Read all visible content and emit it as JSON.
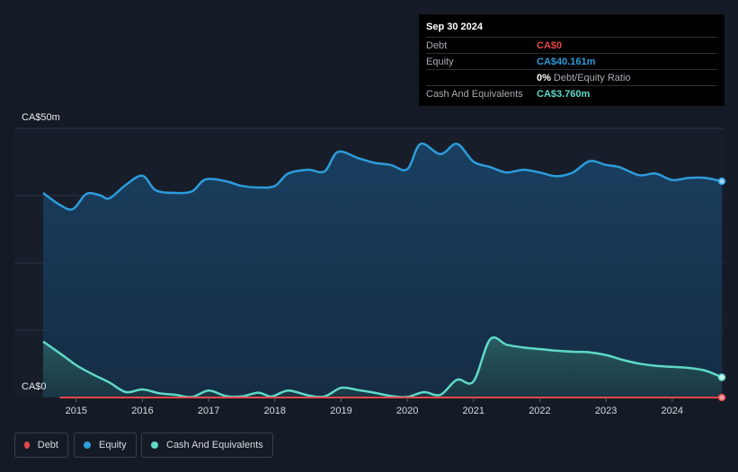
{
  "tooltip": {
    "date": "Sep 30 2024",
    "rows": [
      {
        "label": "Debt",
        "value": "CA$0",
        "color": "#e64848"
      },
      {
        "label": "Equity",
        "value": "CA$40.161m",
        "color": "#2d9cdb"
      },
      {
        "label": "",
        "value": "0%",
        "suffix": "Debt/Equity Ratio",
        "color": "#ffffff"
      },
      {
        "label": "Cash And Equivalents",
        "value": "CA$3.760m",
        "color": "#5fd9c8"
      }
    ]
  },
  "legend": [
    {
      "label": "Debt",
      "color": "#e64848"
    },
    {
      "label": "Equity",
      "color": "#2d9cdb"
    },
    {
      "label": "Cash And Equivalents",
      "color": "#5fd9c8"
    }
  ],
  "chart_data": {
    "type": "area",
    "title": "",
    "xlabel": "",
    "ylabel": "",
    "y_unit": "CA$ millions",
    "ylim": [
      0,
      50
    ],
    "xlim": [
      2014.5,
      2024.75
    ],
    "y_tick_labels": [
      "CA$50m",
      "CA$0"
    ],
    "x_ticks": [
      2015,
      2016,
      2017,
      2018,
      2019,
      2020,
      2021,
      2022,
      2023,
      2024
    ],
    "series": [
      {
        "name": "Equity",
        "color": "#2d9cdb",
        "points": [
          [
            2014.5,
            38.0
          ],
          [
            2014.75,
            35.8
          ],
          [
            2014.95,
            35.0
          ],
          [
            2015.15,
            37.8
          ],
          [
            2015.35,
            37.6
          ],
          [
            2015.5,
            37.0
          ],
          [
            2015.75,
            39.5
          ],
          [
            2016.0,
            41.2
          ],
          [
            2016.2,
            38.5
          ],
          [
            2016.5,
            38.0
          ],
          [
            2016.75,
            38.3
          ],
          [
            2016.95,
            40.5
          ],
          [
            2017.25,
            40.2
          ],
          [
            2017.5,
            39.3
          ],
          [
            2017.75,
            39.0
          ],
          [
            2018.0,
            39.3
          ],
          [
            2018.2,
            41.6
          ],
          [
            2018.5,
            42.3
          ],
          [
            2018.75,
            42.0
          ],
          [
            2018.95,
            45.6
          ],
          [
            2019.25,
            44.5
          ],
          [
            2019.5,
            43.6
          ],
          [
            2019.75,
            43.2
          ],
          [
            2020.0,
            42.4
          ],
          [
            2020.2,
            47.1
          ],
          [
            2020.5,
            45.2
          ],
          [
            2020.75,
            47.1
          ],
          [
            2021.0,
            43.8
          ],
          [
            2021.25,
            42.8
          ],
          [
            2021.5,
            41.8
          ],
          [
            2021.75,
            42.3
          ],
          [
            2022.0,
            41.8
          ],
          [
            2022.25,
            41.1
          ],
          [
            2022.5,
            41.8
          ],
          [
            2022.75,
            43.9
          ],
          [
            2023.0,
            43.2
          ],
          [
            2023.2,
            42.8
          ],
          [
            2023.5,
            41.3
          ],
          [
            2023.75,
            41.6
          ],
          [
            2024.0,
            40.4
          ],
          [
            2024.25,
            40.8
          ],
          [
            2024.5,
            40.8
          ],
          [
            2024.75,
            40.16
          ]
        ]
      },
      {
        "name": "Cash And Equivalents",
        "color": "#5fd9c8",
        "points": [
          [
            2014.5,
            10.4
          ],
          [
            2014.8,
            7.8
          ],
          [
            2015.0,
            6.0
          ],
          [
            2015.25,
            4.3
          ],
          [
            2015.5,
            2.8
          ],
          [
            2015.75,
            1.0
          ],
          [
            2016.0,
            1.5
          ],
          [
            2016.25,
            0.8
          ],
          [
            2016.5,
            0.5
          ],
          [
            2016.75,
            0.1
          ],
          [
            2017.0,
            1.3
          ],
          [
            2017.25,
            0.3
          ],
          [
            2017.5,
            0.2
          ],
          [
            2017.75,
            0.9
          ],
          [
            2017.95,
            0.2
          ],
          [
            2018.2,
            1.3
          ],
          [
            2018.5,
            0.4
          ],
          [
            2018.75,
            0.2
          ],
          [
            2019.0,
            1.8
          ],
          [
            2019.25,
            1.4
          ],
          [
            2019.5,
            0.9
          ],
          [
            2019.75,
            0.3
          ],
          [
            2020.0,
            0.1
          ],
          [
            2020.25,
            1.0
          ],
          [
            2020.5,
            0.5
          ],
          [
            2020.75,
            3.3
          ],
          [
            2021.0,
            3.0
          ],
          [
            2021.25,
            10.8
          ],
          [
            2021.5,
            9.8
          ],
          [
            2021.75,
            9.3
          ],
          [
            2022.0,
            9.0
          ],
          [
            2022.25,
            8.7
          ],
          [
            2022.5,
            8.5
          ],
          [
            2022.75,
            8.4
          ],
          [
            2023.0,
            7.9
          ],
          [
            2023.25,
            7.0
          ],
          [
            2023.5,
            6.3
          ],
          [
            2023.75,
            5.9
          ],
          [
            2024.0,
            5.7
          ],
          [
            2024.25,
            5.5
          ],
          [
            2024.5,
            5.0
          ],
          [
            2024.75,
            3.76
          ]
        ]
      },
      {
        "name": "Debt",
        "color": "#e64848",
        "points": [
          [
            2014.75,
            0
          ],
          [
            2024.75,
            0
          ]
        ]
      }
    ]
  }
}
